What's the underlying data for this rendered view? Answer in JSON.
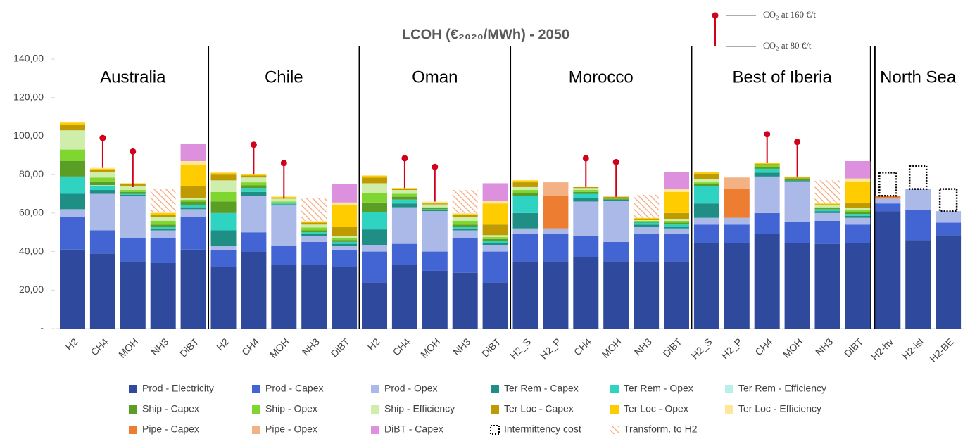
{
  "chart_data": {
    "type": "bar",
    "stacked": true,
    "title": "LCOH (€₂₀₂₀/MWh) - 2050",
    "groups": [
      {
        "name": "Australia",
        "categories": [
          "H2",
          "CH4",
          "MOH",
          "NH3",
          "DiBT"
        ]
      },
      {
        "name": "Chile",
        "categories": [
          "H2",
          "CH4",
          "MOH",
          "NH3",
          "DiBT"
        ]
      },
      {
        "name": "Oman",
        "categories": [
          "H2",
          "CH4",
          "MOH",
          "NH3",
          "DiBT"
        ]
      },
      {
        "name": "Morocco",
        "categories": [
          "H2_S",
          "H2_P",
          "CH4",
          "MOH",
          "NH3",
          "DiBT"
        ]
      },
      {
        "name": "Best of Iberia",
        "categories": [
          "H2_S",
          "H2_P",
          "CH4",
          "MOH",
          "NH3",
          "DiBT"
        ]
      },
      {
        "name": "North Sea",
        "categories": [
          "H2-hv",
          "H2-isl",
          "H2-BE"
        ]
      }
    ],
    "ylim": [
      0,
      140
    ],
    "yticks": [
      {
        "value": 0,
        "label": "-"
      },
      {
        "value": 20,
        "label": "20,00"
      },
      {
        "value": 40,
        "label": "40,00"
      },
      {
        "value": 60,
        "label": "60,00"
      },
      {
        "value": 80,
        "label": "80,00"
      },
      {
        "value": 100,
        "label": "100,00"
      },
      {
        "value": 120,
        "label": "120,00"
      },
      {
        "value": 140,
        "label": "140,00"
      }
    ],
    "series": [
      {
        "name": "Prod - Electricity",
        "color": "#2f4a9c",
        "values": [
          41,
          39,
          35,
          34,
          41,
          32,
          40,
          33,
          33,
          32,
          24,
          33,
          30,
          29,
          24,
          35,
          35,
          37,
          35,
          35,
          35,
          44.5,
          44.5,
          49,
          44.5,
          44,
          44.5,
          61,
          46,
          48.5
        ]
      },
      {
        "name": "Prod - Capex",
        "color": "#4365d3",
        "values": [
          17,
          12,
          12,
          13,
          17,
          9,
          10,
          10,
          12,
          9,
          16,
          11,
          10,
          18,
          16,
          14,
          14,
          11,
          10,
          14,
          14,
          9.5,
          9.5,
          11,
          11,
          12,
          9.5,
          4,
          15.5,
          6.5
        ]
      },
      {
        "name": "Prod - Opex",
        "color": "#aab9e8",
        "values": [
          4,
          19,
          22,
          4,
          4,
          2,
          19,
          21,
          3,
          2,
          3.5,
          19,
          21,
          4,
          3.5,
          3,
          3,
          18,
          21.5,
          4,
          3,
          3.5,
          3.5,
          19,
          21,
          4,
          3.5,
          2.5,
          11,
          6
        ]
      },
      {
        "name": "Ter Rem - Capex",
        "color": "#1f8f86",
        "values": [
          8,
          2,
          0.5,
          1,
          1,
          8,
          2,
          0.5,
          1,
          1,
          8,
          2,
          0.5,
          1,
          1,
          8,
          0,
          2,
          0.5,
          1,
          1,
          7.5,
          0,
          2,
          0.5,
          1,
          1,
          0,
          0,
          0
        ]
      },
      {
        "name": "Ter Rem - Opex",
        "color": "#2ed3c1",
        "values": [
          9,
          2,
          0.5,
          1,
          1,
          9,
          2,
          0.5,
          1,
          1,
          9,
          2,
          0.5,
          1,
          1,
          9,
          0,
          2,
          0,
          1,
          1,
          9,
          0,
          2,
          0,
          1,
          1,
          0,
          0,
          0
        ]
      },
      {
        "name": "Ter Rem - Efficiency",
        "color": "#b8efe9",
        "values": [
          0,
          0.5,
          0,
          0,
          0,
          0,
          0,
          0,
          0,
          0,
          0,
          0,
          0,
          0,
          0,
          0,
          0,
          0,
          0,
          0,
          0,
          0,
          0,
          0,
          0,
          0,
          0,
          0,
          0,
          0
        ]
      },
      {
        "name": "Ship - Capex",
        "color": "#5b9e25",
        "values": [
          8,
          2,
          1,
          1,
          2,
          6,
          1.5,
          0.5,
          1,
          1,
          5,
          1.5,
          0.5,
          1,
          1,
          1.5,
          0,
          1,
          0.5,
          0.5,
          1,
          1,
          0,
          1,
          0.5,
          0.5,
          1,
          0,
          0,
          0
        ]
      },
      {
        "name": "Ship - Opex",
        "color": "#80d630",
        "values": [
          6,
          2,
          1,
          2,
          1,
          5,
          1.5,
          0.5,
          1.5,
          1,
          5,
          1.5,
          0.5,
          2,
          1,
          1.5,
          0,
          1,
          0.5,
          0.5,
          1,
          1,
          0,
          1,
          0.5,
          0.5,
          1,
          0,
          0,
          0
        ]
      },
      {
        "name": "Ship - Efficiency",
        "color": "#cfeeab",
        "values": [
          10,
          3,
          2,
          2,
          1,
          6,
          2.5,
          1.5,
          1.5,
          1,
          5,
          2,
          1.5,
          2,
          1,
          1.5,
          0,
          1,
          0,
          0.5,
          1,
          1.5,
          0,
          0,
          0,
          1,
          1,
          0,
          0,
          0
        ]
      },
      {
        "name": "Ter Loc - Capex",
        "color": "#bf9a00",
        "values": [
          3,
          1,
          1,
          1,
          6,
          3,
          1,
          0.5,
          1,
          5,
          3,
          0.5,
          0.5,
          1,
          5.5,
          2.5,
          0,
          0.5,
          0.5,
          0.5,
          3,
          3,
          0,
          0.5,
          0.5,
          0.5,
          3,
          0,
          0,
          0
        ]
      },
      {
        "name": "Ter Loc - Opex",
        "color": "#ffcc00",
        "values": [
          1,
          0.5,
          0.5,
          1,
          11,
          1,
          0.5,
          0.5,
          0.5,
          11,
          1,
          0.5,
          0.5,
          0.5,
          11,
          1,
          0,
          0,
          0,
          0.5,
          11,
          1,
          0,
          0.5,
          0.5,
          0.5,
          11,
          0,
          0,
          0
        ]
      },
      {
        "name": "Ter Loc - Efficiency",
        "color": "#ffe79a",
        "values": [
          0.5,
          0.5,
          0,
          0.5,
          2,
          0,
          0,
          0,
          0.5,
          1.5,
          0,
          0,
          0.5,
          0.5,
          1.5,
          0,
          0,
          0,
          0,
          0,
          1.5,
          0,
          0,
          0,
          0,
          0,
          1.5,
          0,
          0,
          0
        ]
      },
      {
        "name": "Pipe - Capex",
        "color": "#ed7d31",
        "values": [
          0,
          0,
          0,
          0,
          0,
          0,
          0,
          0,
          0,
          0,
          0,
          0,
          0,
          0,
          0,
          0,
          17,
          0,
          0,
          0,
          0,
          0,
          15,
          0,
          0,
          0,
          0,
          1.5,
          0,
          0
        ]
      },
      {
        "name": "Pipe - Opex",
        "color": "#f4b183",
        "values": [
          0,
          0,
          0,
          0,
          0,
          0,
          0,
          0,
          0,
          0,
          0,
          0,
          0,
          0,
          0,
          0,
          7,
          0,
          0,
          0,
          0,
          0,
          6,
          0,
          0,
          0,
          0,
          0,
          0,
          0
        ]
      },
      {
        "name": "DiBT - Capex",
        "color": "#dd90dd",
        "values": [
          0,
          0,
          0,
          0,
          9,
          0,
          0,
          0,
          0,
          9.5,
          0,
          0,
          0,
          0,
          9,
          0,
          0,
          0,
          0,
          0,
          9,
          0,
          0,
          0,
          0,
          0,
          9,
          0,
          0,
          0
        ]
      },
      {
        "name": "Intermittency cost",
        "color": "#000000",
        "pattern": "dotted",
        "values": [
          0,
          0,
          0,
          0,
          0,
          0,
          0,
          0,
          0,
          0,
          0,
          0,
          0,
          0,
          0,
          0,
          0,
          0,
          0,
          0,
          0,
          0,
          0,
          0,
          0,
          0,
          0,
          12,
          12,
          11.5
        ]
      },
      {
        "name": "Transform. to H2",
        "color": "#f4a77a",
        "pattern": "hatch",
        "values": [
          0,
          0,
          0,
          12,
          0,
          0,
          0,
          0,
          12,
          0,
          0,
          0,
          0,
          12,
          0,
          0,
          0,
          0,
          0,
          12,
          0,
          0,
          0,
          0,
          0,
          12,
          0,
          0,
          0,
          0
        ]
      }
    ],
    "co2": [
      {
        "name": "CO₂ at 160 €/t",
        "color": "#d0021b",
        "values": [
          null,
          99,
          92,
          null,
          null,
          null,
          95.5,
          86,
          null,
          null,
          null,
          88.5,
          84,
          null,
          null,
          null,
          null,
          88.5,
          86.5,
          null,
          null,
          null,
          null,
          101,
          97,
          null,
          null,
          null,
          null,
          null
        ]
      },
      {
        "name": "CO₂ at 80 €/t",
        "color": "#d0021b",
        "values": [
          null,
          83.5,
          73.5,
          null,
          null,
          null,
          80,
          67.5,
          null,
          null,
          null,
          73,
          66,
          null,
          null,
          null,
          null,
          73.5,
          68.5,
          null,
          null,
          null,
          null,
          86,
          79,
          null,
          null,
          null,
          null,
          null
        ]
      }
    ]
  }
}
